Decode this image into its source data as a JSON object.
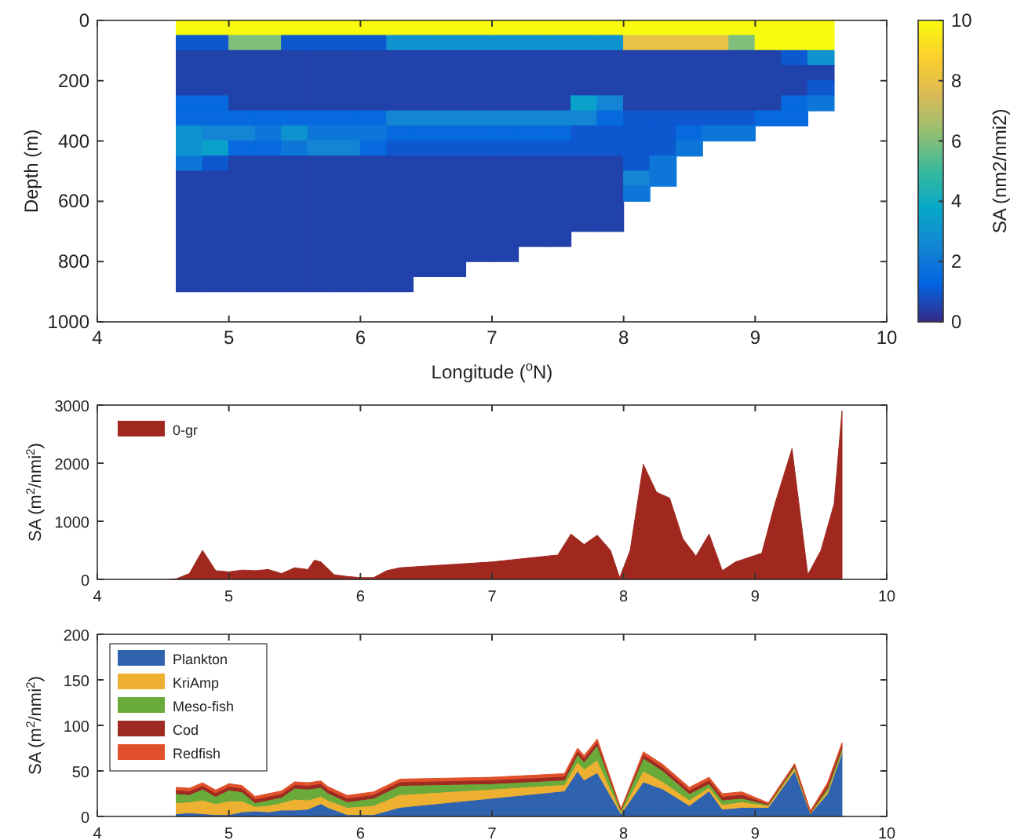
{
  "chart_data": [
    {
      "type": "scatter",
      "marker": "square",
      "xlabel": "Longitude ($^{o}$N)",
      "ylabel": "Depth (m)",
      "clabel": "SA (nm2/nmi2)",
      "x": [
        4.7,
        4.7,
        4.7,
        4.7,
        4.7,
        4.7,
        4.7,
        4.7,
        4.7,
        4.7,
        4.7,
        4.7,
        4.7,
        4.7,
        4.7,
        4.7,
        4.7,
        4.7,
        4.9,
        4.9,
        4.9,
        4.9,
        4.9,
        4.9,
        4.9,
        4.9,
        4.9,
        4.9,
        4.9,
        4.9,
        4.9,
        4.9,
        4.9,
        4.9,
        4.9,
        4.9,
        5.1,
        5.1,
        5.1,
        5.1,
        5.1,
        5.1,
        5.1,
        5.1,
        5.1,
        5.1,
        5.1,
        5.1,
        5.1,
        5.1,
        5.1,
        5.1,
        5.1,
        5.1,
        5.3,
        5.3,
        5.3,
        5.3,
        5.3,
        5.3,
        5.3,
        5.3,
        5.3,
        5.3,
        5.3,
        5.3,
        5.3,
        5.3,
        5.3,
        5.3,
        5.3,
        5.3,
        5.5,
        5.5,
        5.5,
        5.5,
        5.5,
        5.5,
        5.5,
        5.5,
        5.5,
        5.5,
        5.5,
        5.5,
        5.5,
        5.5,
        5.5,
        5.5,
        5.5,
        5.5,
        5.7,
        5.7,
        5.7,
        5.7,
        5.7,
        5.7,
        5.7,
        5.7,
        5.7,
        5.7,
        5.7,
        5.7,
        5.7,
        5.7,
        5.7,
        5.7,
        5.7,
        5.7,
        5.9,
        5.9,
        5.9,
        5.9,
        5.9,
        5.9,
        5.9,
        5.9,
        5.9,
        5.9,
        5.9,
        5.9,
        5.9,
        5.9,
        5.9,
        5.9,
        5.9,
        5.9,
        6.1,
        6.1,
        6.1,
        6.1,
        6.1,
        6.1,
        6.1,
        6.1,
        6.1,
        6.1,
        6.1,
        6.1,
        6.1,
        6.1,
        6.1,
        6.1,
        6.1,
        6.1,
        6.3,
        6.3,
        6.3,
        6.3,
        6.3,
        6.3,
        6.3,
        6.3,
        6.3,
        6.3,
        6.3,
        6.3,
        6.3,
        6.3,
        6.3,
        6.3,
        6.3,
        6.3,
        6.5,
        6.5,
        6.5,
        6.5,
        6.5,
        6.5,
        6.5,
        6.5,
        6.5,
        6.5,
        6.5,
        6.5,
        6.5,
        6.5,
        6.5,
        6.5,
        6.5,
        6.7,
        6.7,
        6.7,
        6.7,
        6.7,
        6.7,
        6.7,
        6.7,
        6.7,
        6.7,
        6.7,
        6.7,
        6.7,
        6.7,
        6.7,
        6.7,
        6.7,
        6.9,
        6.9,
        6.9,
        6.9,
        6.9,
        6.9,
        6.9,
        6.9,
        6.9,
        6.9,
        6.9,
        6.9,
        6.9,
        6.9,
        6.9,
        6.9,
        7.1,
        7.1,
        7.1,
        7.1,
        7.1,
        7.1,
        7.1,
        7.1,
        7.1,
        7.1,
        7.1,
        7.1,
        7.1,
        7.1,
        7.1,
        7.1,
        7.3,
        7.3,
        7.3,
        7.3,
        7.3,
        7.3,
        7.3,
        7.3,
        7.3,
        7.3,
        7.3,
        7.3,
        7.3,
        7.3,
        7.3,
        7.5,
        7.5,
        7.5,
        7.5,
        7.5,
        7.5,
        7.5,
        7.5,
        7.5,
        7.5,
        7.5,
        7.5,
        7.5,
        7.5,
        7.5,
        7.7,
        7.7,
        7.7,
        7.7,
        7.7,
        7.7,
        7.7,
        7.7,
        7.7,
        7.7,
        7.7,
        7.7,
        7.7,
        7.7,
        7.9,
        7.9,
        7.9,
        7.9,
        7.9,
        7.9,
        7.9,
        7.9,
        7.9,
        7.9,
        7.9,
        7.9,
        7.9,
        7.9,
        8.1,
        8.1,
        8.1,
        8.1,
        8.1,
        8.1,
        8.1,
        8.1,
        8.1,
        8.1,
        8.1,
        8.1,
        8.3,
        8.3,
        8.3,
        8.3,
        8.3,
        8.3,
        8.3,
        8.3,
        8.3,
        8.3,
        8.3,
        8.5,
        8.5,
        8.5,
        8.5,
        8.5,
        8.5,
        8.5,
        8.5,
        8.5,
        8.7,
        8.7,
        8.7,
        8.7,
        8.7,
        8.7,
        8.7,
        8.7,
        8.9,
        8.9,
        8.9,
        8.9,
        8.9,
        8.9,
        8.9,
        8.9,
        9.1,
        9.1,
        9.1,
        9.1,
        9.1,
        9.1,
        9.1,
        9.3,
        9.3,
        9.3,
        9.3,
        9.3,
        9.3,
        9.3,
        9.5,
        9.5,
        9.5,
        9.5,
        9.5,
        9.5
      ],
      "values": [
        25,
        75,
        125,
        175,
        225,
        275,
        325,
        375,
        425,
        475,
        525,
        575,
        625,
        675,
        725,
        775,
        825,
        875,
        25,
        75,
        125,
        175,
        225,
        275,
        325,
        375,
        425,
        475,
        525,
        575,
        625,
        675,
        725,
        775,
        825,
        875,
        25,
        75,
        125,
        175,
        225,
        275,
        325,
        375,
        425,
        475,
        525,
        575,
        625,
        675,
        725,
        775,
        825,
        875,
        25,
        75,
        125,
        175,
        225,
        275,
        325,
        375,
        425,
        475,
        525,
        575,
        625,
        675,
        725,
        775,
        825,
        875,
        25,
        75,
        125,
        175,
        225,
        275,
        325,
        375,
        425,
        475,
        525,
        575,
        625,
        675,
        725,
        775,
        825,
        875,
        25,
        75,
        125,
        175,
        225,
        275,
        325,
        375,
        425,
        475,
        525,
        575,
        625,
        675,
        725,
        775,
        825,
        875,
        25,
        75,
        125,
        175,
        225,
        275,
        325,
        375,
        425,
        475,
        525,
        575,
        625,
        675,
        725,
        775,
        825,
        875,
        25,
        75,
        125,
        175,
        225,
        275,
        325,
        375,
        425,
        475,
        525,
        575,
        625,
        675,
        725,
        775,
        825,
        875,
        25,
        75,
        125,
        175,
        225,
        275,
        325,
        375,
        425,
        475,
        525,
        575,
        625,
        675,
        725,
        775,
        825,
        875,
        25,
        75,
        125,
        175,
        225,
        275,
        325,
        375,
        425,
        475,
        525,
        575,
        625,
        675,
        725,
        775,
        825,
        25,
        75,
        125,
        175,
        225,
        275,
        325,
        375,
        425,
        475,
        525,
        575,
        625,
        675,
        725,
        775,
        825,
        25,
        75,
        125,
        175,
        225,
        275,
        325,
        375,
        425,
        475,
        525,
        575,
        625,
        675,
        725,
        775,
        25,
        75,
        125,
        175,
        225,
        275,
        325,
        375,
        425,
        475,
        525,
        575,
        625,
        675,
        725,
        775,
        25,
        75,
        125,
        175,
        225,
        275,
        325,
        375,
        425,
        475,
        525,
        575,
        625,
        675,
        725,
        25,
        75,
        125,
        175,
        225,
        275,
        325,
        375,
        425,
        475,
        525,
        575,
        625,
        675,
        725,
        25,
        75,
        125,
        175,
        225,
        275,
        325,
        375,
        425,
        475,
        525,
        575,
        625,
        675,
        25,
        75,
        125,
        175,
        225,
        275,
        325,
        375,
        425,
        475,
        525,
        575,
        625,
        675,
        25,
        75,
        125,
        175,
        225,
        275,
        325,
        375,
        425,
        475,
        525,
        575,
        25,
        75,
        125,
        175,
        225,
        275,
        325,
        375,
        425,
        475,
        525,
        25,
        75,
        125,
        175,
        225,
        275,
        325,
        375,
        425,
        25,
        75,
        125,
        175,
        225,
        275,
        325,
        375,
        25,
        75,
        125,
        175,
        225,
        275,
        325,
        375,
        25,
        75,
        125,
        175,
        225,
        275,
        325,
        25,
        75,
        125,
        175,
        225,
        275,
        325,
        25,
        75,
        125,
        175,
        225,
        275
      ],
      "cvalues": [
        10,
        1,
        0.5,
        0.5,
        0.5,
        1.5,
        1.5,
        3,
        3,
        2,
        0.5,
        0.5,
        0.5,
        0.5,
        0.5,
        0.5,
        0.5,
        0.5,
        10,
        1,
        0.5,
        0.5,
        0.5,
        1.5,
        1.5,
        2.5,
        3.5,
        1,
        0.5,
        0.5,
        0.5,
        0.5,
        0.5,
        0.5,
        0.5,
        0.5,
        10,
        6,
        0.5,
        0.5,
        0.5,
        0.5,
        1.5,
        2.5,
        1.5,
        0.5,
        0.5,
        0.5,
        0.5,
        0.5,
        0.5,
        0.5,
        0.5,
        0.5,
        10,
        6,
        0.5,
        0.5,
        0.5,
        0.5,
        1.5,
        2,
        1.5,
        0.5,
        0.5,
        0.5,
        0.5,
        0.5,
        0.5,
        0.5,
        0.5,
        0.5,
        10,
        1,
        0.5,
        0.5,
        0.5,
        0.5,
        1.5,
        3,
        2,
        0.5,
        0.5,
        0.5,
        0.5,
        0.5,
        0.5,
        0.5,
        0.5,
        0.5,
        10,
        1,
        0.5,
        0.5,
        0.5,
        0.5,
        1.5,
        2,
        2.5,
        0.5,
        0.5,
        0.5,
        0.5,
        0.5,
        0.5,
        0.5,
        0.5,
        0.5,
        10,
        1,
        0.5,
        0.5,
        0.5,
        0.5,
        1.5,
        2,
        2.5,
        0.5,
        0.5,
        0.5,
        0.5,
        0.5,
        0.5,
        0.5,
        0.5,
        0.5,
        10,
        1,
        0.5,
        0.5,
        0.5,
        0.5,
        1.5,
        2,
        1.5,
        0.5,
        0.5,
        0.5,
        0.5,
        0.5,
        0.5,
        0.5,
        0.5,
        0.5,
        10,
        3,
        0.5,
        0.5,
        0.5,
        0.5,
        2.5,
        1.5,
        1,
        0.5,
        0.5,
        0.5,
        0.5,
        0.5,
        0.5,
        0.5,
        0.5,
        0.5,
        10,
        3,
        0.5,
        0.5,
        0.5,
        0.5,
        2.5,
        1.5,
        1,
        0.5,
        0.5,
        0.5,
        0.5,
        0.5,
        0.5,
        0.5,
        0.5,
        10,
        3,
        0.5,
        0.5,
        0.5,
        0.5,
        2.5,
        1.5,
        1,
        0.5,
        0.5,
        0.5,
        0.5,
        0.5,
        0.5,
        0.5,
        0.5,
        10,
        3,
        0.5,
        0.5,
        0.5,
        0.5,
        2.5,
        1.5,
        1,
        0.5,
        0.5,
        0.5,
        0.5,
        0.5,
        0.5,
        0.5,
        10,
        3,
        0.5,
        0.5,
        0.5,
        0.5,
        2.5,
        1.5,
        1,
        0.5,
        0.5,
        0.5,
        0.5,
        0.5,
        0.5,
        0.5,
        10,
        3,
        0.5,
        0.5,
        0.5,
        0.5,
        2.5,
        1.5,
        1,
        0.5,
        0.5,
        0.5,
        0.5,
        0.5,
        0.5,
        10,
        3,
        0.5,
        0.5,
        0.5,
        0.5,
        2.5,
        1.5,
        1,
        0.5,
        0.5,
        0.5,
        0.5,
        0.5,
        0.5,
        10,
        3,
        0.5,
        0.5,
        0.5,
        3.5,
        2.5,
        1,
        1,
        0.5,
        0.5,
        0.5,
        0.5,
        0.5,
        10,
        3,
        0.5,
        0.5,
        0.5,
        2.5,
        1.5,
        1,
        1,
        0.5,
        0.5,
        0.5,
        0.5,
        0.5,
        10,
        8,
        0.5,
        0.5,
        0.5,
        0.5,
        1,
        1,
        1,
        1,
        2.5,
        2,
        10,
        8,
        0.5,
        0.5,
        0.5,
        0.5,
        1,
        1,
        1,
        2,
        2,
        10,
        8,
        0.5,
        0.5,
        0.5,
        0.5,
        1,
        1.5,
        2,
        10,
        8,
        0.5,
        0.5,
        0.5,
        0.5,
        1,
        2,
        10,
        6,
        0.5,
        0.5,
        0.5,
        0.5,
        1,
        2,
        10,
        10,
        0.5,
        0.5,
        0.5,
        0.5,
        1.5,
        10,
        10,
        1,
        0.5,
        0.5,
        1.5,
        1.5,
        10,
        10,
        3,
        0.5,
        1,
        2
      ],
      "xlim": [
        4,
        10
      ],
      "xticks": [
        4,
        5,
        6,
        7,
        8,
        9,
        10
      ],
      "ylim": [
        1000,
        0
      ],
      "yticks": [
        0,
        200,
        400,
        600,
        800,
        1000
      ],
      "clim": [
        0,
        10
      ],
      "cticks": [
        0,
        2,
        4,
        6,
        8,
        10
      ]
    },
    {
      "type": "area",
      "ylabel": "SA (m$^{2}$/nmi$^{2}$)",
      "legend": "top left",
      "x": [
        4.55,
        4.6,
        4.7,
        4.8,
        4.9,
        5.0,
        5.1,
        5.2,
        5.3,
        5.4,
        5.5,
        5.6,
        5.65,
        5.7,
        5.8,
        5.9,
        6.0,
        6.1,
        6.2,
        6.3,
        7.0,
        7.5,
        7.6,
        7.7,
        7.8,
        7.9,
        7.97,
        8.05,
        8.15,
        8.25,
        8.35,
        8.45,
        8.55,
        8.65,
        8.75,
        8.85,
        9.05,
        9.15,
        9.28,
        9.4,
        9.5,
        9.6,
        9.66
      ],
      "series": [
        {
          "name": "0-gr",
          "color": "#a0281f",
          "values": [
            0,
            10,
            100,
            500,
            150,
            130,
            160,
            150,
            170,
            100,
            200,
            170,
            330,
            300,
            80,
            50,
            30,
            30,
            150,
            200,
            300,
            420,
            780,
            600,
            760,
            500,
            30,
            500,
            1980,
            1500,
            1400,
            700,
            400,
            780,
            150,
            300,
            450,
            1300,
            2250,
            80,
            500,
            1300,
            2900
          ]
        }
      ],
      "xlim": [
        4,
        10
      ],
      "xticks": [
        4,
        5,
        6,
        7,
        8,
        9,
        10
      ],
      "ylim": [
        0,
        3000
      ],
      "yticks": [
        0,
        1000,
        2000,
        3000
      ]
    },
    {
      "type": "area",
      "stacked": true,
      "ylabel": "SA (m$^{2}$/nmi$^{2}$)",
      "legend": "top left",
      "x": [
        4.6,
        4.7,
        4.8,
        4.9,
        5.0,
        5.1,
        5.2,
        5.3,
        5.4,
        5.5,
        5.6,
        5.7,
        5.75,
        5.9,
        6.1,
        6.3,
        7.0,
        7.55,
        7.65,
        7.7,
        7.8,
        7.98,
        8.15,
        8.3,
        8.5,
        8.65,
        8.75,
        8.9,
        9.1,
        9.3,
        9.42,
        9.55,
        9.66
      ],
      "series": [
        {
          "name": "Plankton",
          "color": "#2f63b0",
          "values": [
            3,
            4,
            3,
            2,
            2,
            5,
            6,
            5,
            7,
            7,
            8,
            14,
            10,
            2,
            2,
            10,
            20,
            28,
            50,
            40,
            48,
            3,
            38,
            30,
            12,
            28,
            8,
            10,
            10,
            50,
            3,
            25,
            70
          ]
        },
        {
          "name": "KriAmp",
          "color": "#eeb030",
          "values": [
            12,
            12,
            15,
            12,
            15,
            12,
            5,
            7,
            8,
            12,
            10,
            8,
            8,
            8,
            10,
            14,
            10,
            7,
            10,
            12,
            14,
            2,
            12,
            8,
            6,
            4,
            5,
            6,
            2,
            3,
            1,
            3,
            2
          ]
        },
        {
          "name": "Meso-fish",
          "color": "#6aaa3a",
          "values": [
            10,
            8,
            12,
            8,
            12,
            10,
            4,
            6,
            6,
            12,
            12,
            10,
            8,
            6,
            8,
            10,
            6,
            5,
            8,
            8,
            16,
            2,
            14,
            12,
            7,
            4,
            5,
            4,
            1,
            2,
            0,
            3,
            3
          ]
        },
        {
          "name": "Cod",
          "color": "#9e2a22",
          "values": [
            4,
            4,
            4,
            4,
            4,
            4,
            4,
            4,
            4,
            4,
            4,
            4,
            4,
            4,
            4,
            4,
            4,
            4,
            4,
            4,
            4,
            1,
            4,
            4,
            4,
            4,
            4,
            4,
            1,
            2,
            1,
            4,
            4
          ]
        },
        {
          "name": "Redfish",
          "color": "#e0502a",
          "values": [
            3,
            3,
            3,
            3,
            3,
            3,
            3,
            3,
            3,
            3,
            3,
            3,
            3,
            3,
            3,
            3,
            3,
            3,
            3,
            3,
            3,
            0,
            3,
            3,
            3,
            3,
            3,
            3,
            1,
            1,
            1,
            2,
            2
          ]
        }
      ],
      "xlim": [
        4,
        10
      ],
      "xticks": [
        4,
        5,
        6,
        7,
        8,
        9,
        10
      ],
      "ylim": [
        0,
        200
      ],
      "yticks": [
        0,
        50,
        100,
        150,
        200
      ]
    }
  ]
}
